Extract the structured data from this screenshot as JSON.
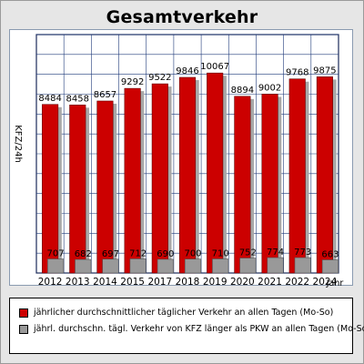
{
  "chart_data": {
    "type": "bar",
    "title": "Gesamtverkehr",
    "ylabel": "KFZ/24h",
    "xlabel": "Jahr",
    "categories": [
      "2012",
      "2013",
      "2014",
      "2015",
      "2017",
      "2018",
      "2019",
      "2020",
      "2021",
      "2022",
      "2024"
    ],
    "series": [
      {
        "name": "jährlicher durchschnittlicher täglicher Verkehr an allen Tagen (Mo-So)",
        "values": [
          8484,
          8458,
          8657,
          9292,
          9522,
          9846,
          10067,
          8894,
          9002,
          9768,
          9875
        ],
        "color": "#cc0000"
      },
      {
        "name": "jährl. durchschn. tägl. Verkehr von KFZ länger als PKW an allen Tagen (Mo-So)",
        "values": [
          707,
          682,
          697,
          712,
          690,
          700,
          710,
          752,
          774,
          773,
          663
        ],
        "color": "#999999"
      }
    ],
    "ylim": [
      0,
      12000
    ],
    "grid": true,
    "legend_placement": "bottom"
  }
}
